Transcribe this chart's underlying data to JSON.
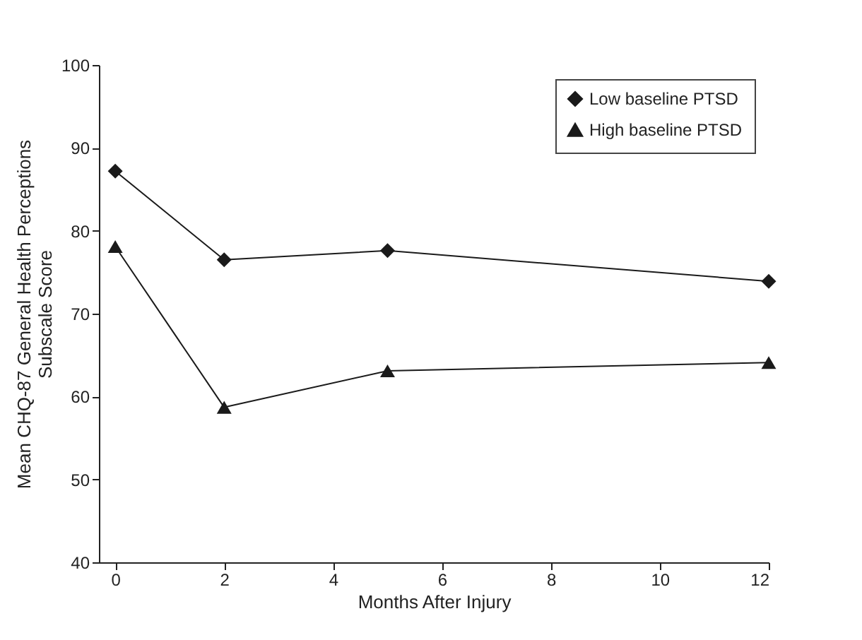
{
  "chart_data": {
    "type": "line",
    "xlabel": "Months After Injury",
    "ylabel": "Mean CHQ-87 General Health Perceptions\nSubscale Score",
    "x": [
      0,
      2,
      5,
      12
    ],
    "series": [
      {
        "name": "Low baseline PTSD",
        "color": "#1a1a1a",
        "marker": "diamond",
        "values": [
          87.2,
          76.5,
          77.6,
          73.9
        ]
      },
      {
        "name": "High baseline PTSD",
        "color": "#1a1a1a",
        "marker": "triangle",
        "values": [
          78.1,
          58.7,
          63.1,
          64.1
        ]
      }
    ],
    "xlim": [
      -0.3,
      12
    ],
    "xticks": [
      0,
      2,
      4,
      6,
      8,
      10,
      12
    ],
    "ylim": [
      40,
      100
    ],
    "yticks": [
      40,
      50,
      60,
      70,
      80,
      90,
      100
    ],
    "grid": false,
    "legend": "top right",
    "line_style": "solid"
  }
}
